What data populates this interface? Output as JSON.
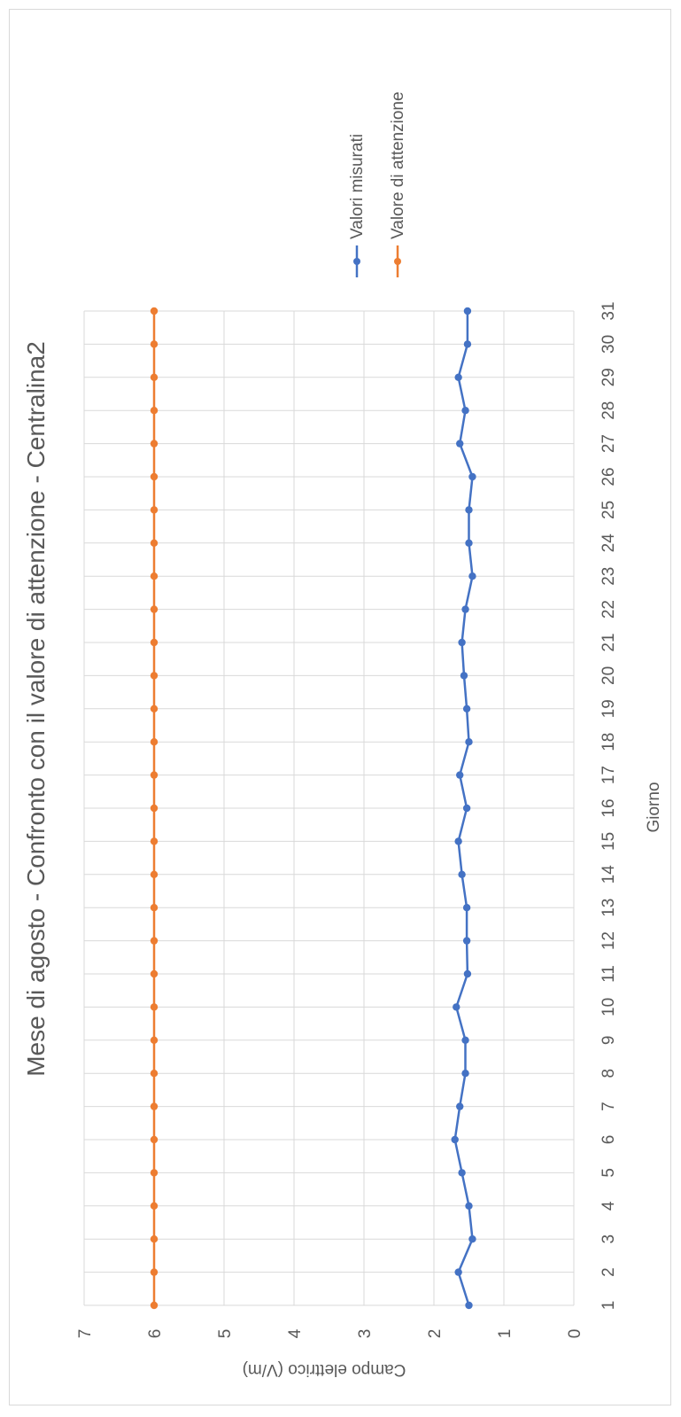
{
  "chart_data": {
    "type": "line",
    "title": "Mese di agosto - Confronto con il valore di attenzione - Centralina2",
    "xlabel": "Giorno",
    "ylabel": "Campo elettrico (V/m)",
    "ylim": [
      0,
      7
    ],
    "yticks": [
      "0",
      "1",
      "2",
      "3",
      "4",
      "5",
      "6",
      "7"
    ],
    "grid": true,
    "legend_position": "right",
    "orientation": "rotated-90-clockwise",
    "categories": [
      "1",
      "2",
      "3",
      "4",
      "5",
      "6",
      "7",
      "8",
      "9",
      "10",
      "11",
      "12",
      "13",
      "14",
      "15",
      "16",
      "17",
      "18",
      "19",
      "20",
      "21",
      "22",
      "23",
      "24",
      "25",
      "26",
      "27",
      "28",
      "29",
      "30",
      "31"
    ],
    "series": [
      {
        "name": "Valori misurati",
        "color": "#4472c4",
        "values": [
          1.5,
          1.65,
          1.45,
          1.5,
          1.6,
          1.7,
          1.63,
          1.55,
          1.55,
          1.68,
          1.52,
          1.53,
          1.53,
          1.6,
          1.65,
          1.53,
          1.63,
          1.5,
          1.53,
          1.57,
          1.6,
          1.55,
          1.45,
          1.5,
          1.5,
          1.45,
          1.63,
          1.55,
          1.65,
          1.52,
          1.52
        ]
      },
      {
        "name": "Valore di attenzione",
        "color": "#ed7d31",
        "values": [
          6,
          6,
          6,
          6,
          6,
          6,
          6,
          6,
          6,
          6,
          6,
          6,
          6,
          6,
          6,
          6,
          6,
          6,
          6,
          6,
          6,
          6,
          6,
          6,
          6,
          6,
          6,
          6,
          6,
          6,
          6
        ]
      }
    ]
  }
}
